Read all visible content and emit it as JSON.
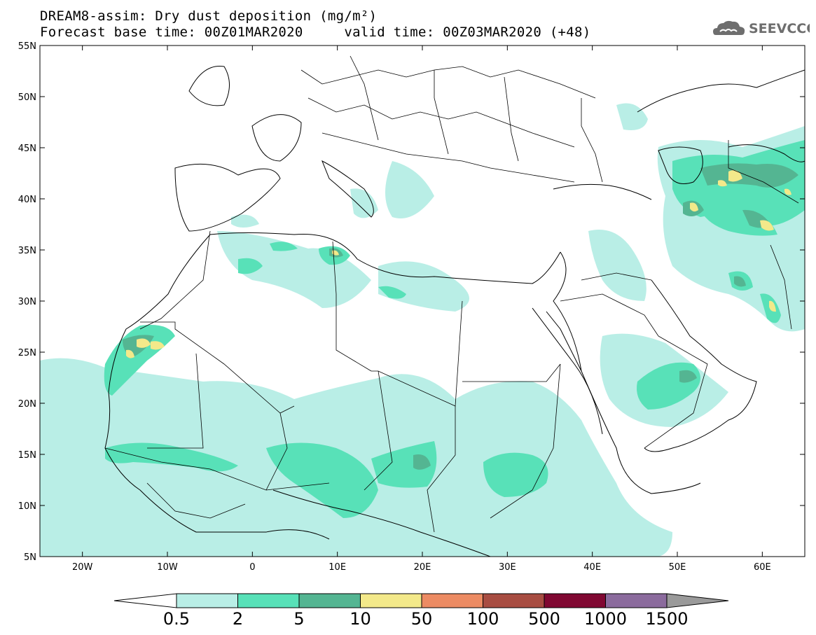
{
  "title": {
    "line1": "DREAM8-assim: Dry dust deposition (mg/m²)",
    "line2": "Forecast base time: 00Z01MAR2020     valid time: 00Z03MAR2020 (+48)"
  },
  "logo": {
    "text": "SEEVCCC",
    "icon": "cloud-icon"
  },
  "axes": {
    "lat_labels": [
      "55N",
      "50N",
      "45N",
      "40N",
      "35N",
      "30N",
      "25N",
      "20N",
      "15N",
      "10N",
      "5N"
    ],
    "lon_labels": [
      "20W",
      "10W",
      "0",
      "10E",
      "20E",
      "30E",
      "40E",
      "50E",
      "60E"
    ]
  },
  "legend": {
    "labels": [
      "0.5",
      "2",
      "5",
      "10",
      "50",
      "100",
      "500",
      "1000",
      "1500"
    ],
    "colors": [
      "#ffffff",
      "#b9eee6",
      "#58e1b8",
      "#54b592",
      "#f3e98a",
      "#ec8b63",
      "#a84d42",
      "#800832",
      "#8b6b9d",
      "#9a9a9a"
    ]
  }
}
